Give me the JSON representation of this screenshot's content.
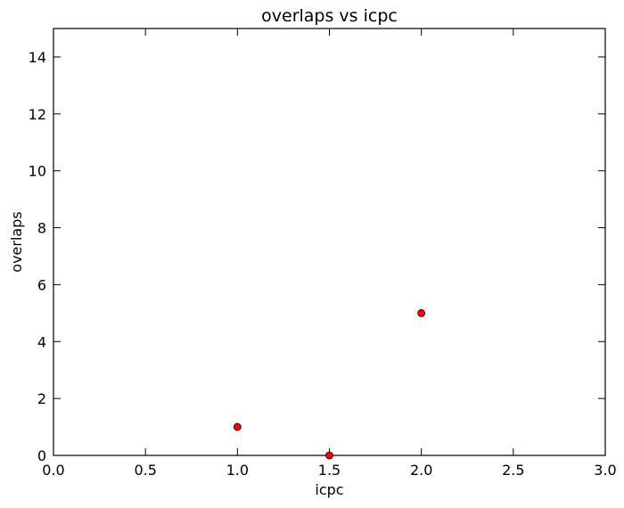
{
  "chart_data": {
    "type": "scatter",
    "title": "overlaps vs icpc",
    "xlabel": "icpc",
    "ylabel": "overlaps",
    "xlim": [
      0.0,
      3.0
    ],
    "ylim": [
      0,
      15
    ],
    "x_ticks": [
      "0.0",
      "0.5",
      "1.0",
      "1.5",
      "2.0",
      "2.5",
      "3.0"
    ],
    "x_tick_values": [
      0.0,
      0.5,
      1.0,
      1.5,
      2.0,
      2.5,
      3.0
    ],
    "y_ticks": [
      "0",
      "2",
      "4",
      "6",
      "8",
      "10",
      "12",
      "14"
    ],
    "y_tick_values": [
      0,
      2,
      4,
      6,
      8,
      10,
      12,
      14
    ],
    "grid": false,
    "legend": "none",
    "points": [
      {
        "x": 1.0,
        "y": 1
      },
      {
        "x": 1.5,
        "y": 0
      },
      {
        "x": 2.0,
        "y": 5
      }
    ],
    "marker_color": "#ff0000",
    "marker_edge_color": "#000000"
  }
}
